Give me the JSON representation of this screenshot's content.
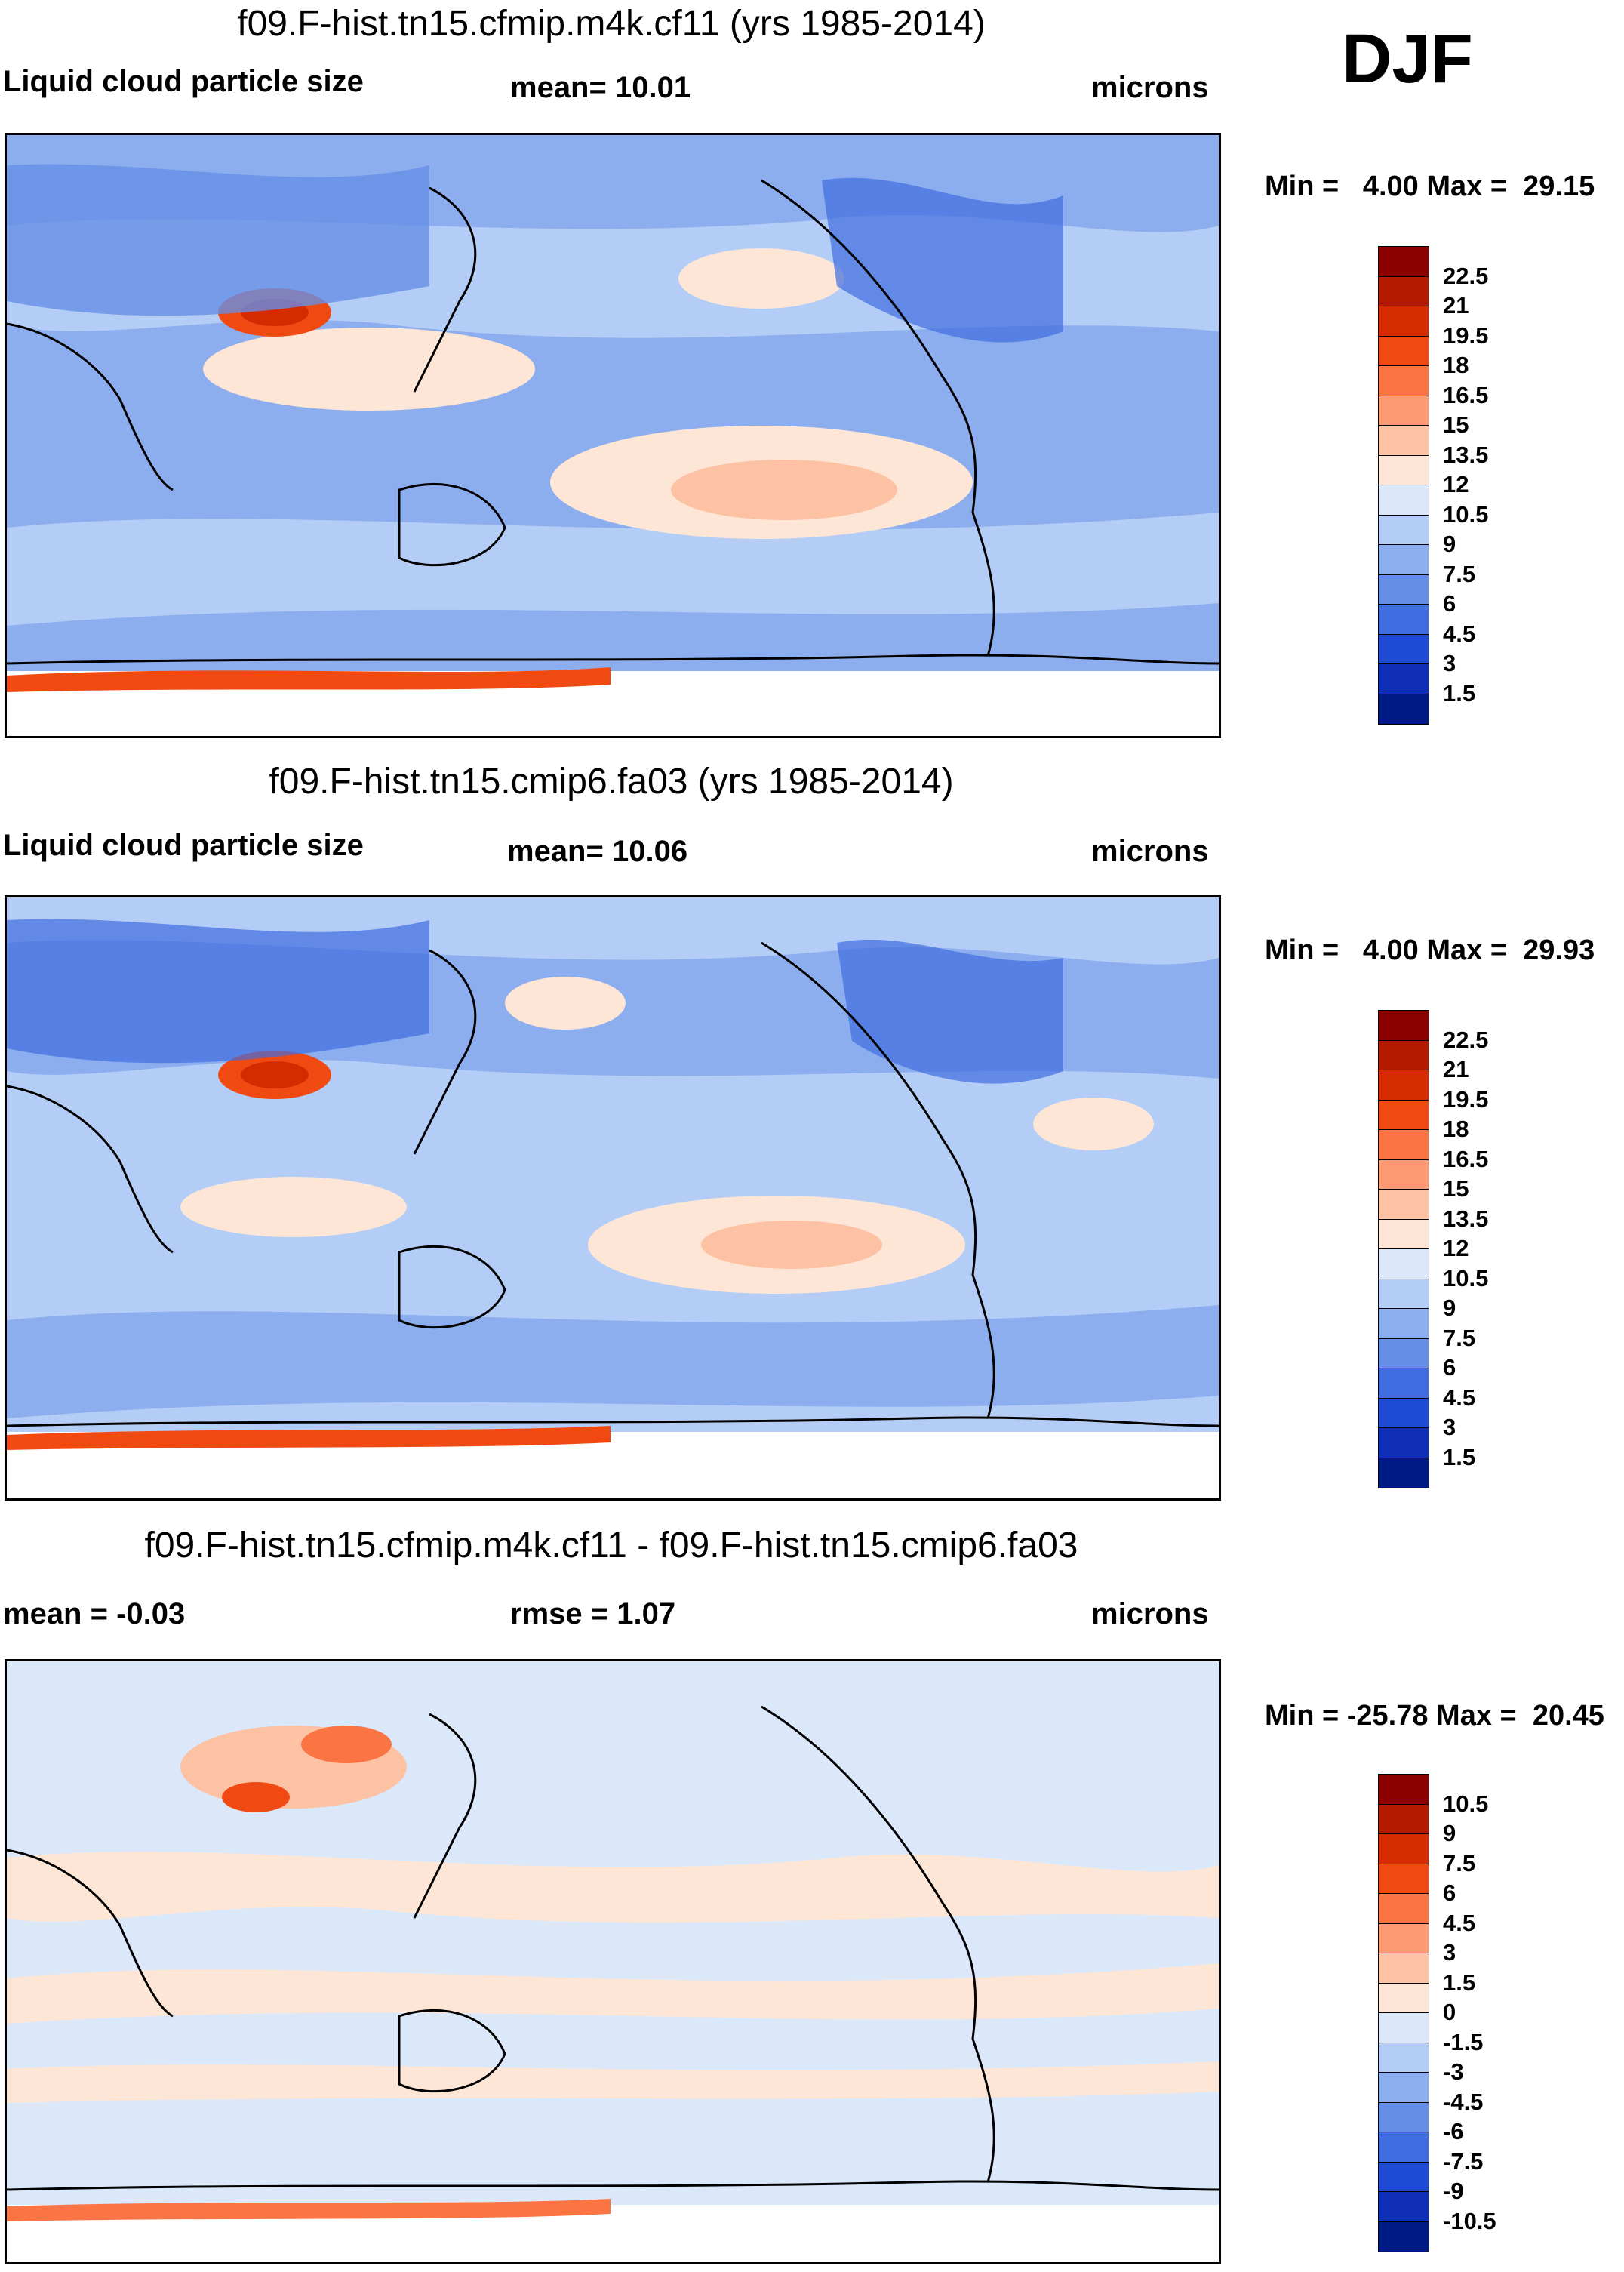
{
  "season": "DJF",
  "units": "microns",
  "panels": [
    {
      "title": "f09.F-hist.tn15.cfmip.m4k.cf11 (yrs 1985-2014)",
      "variable": "Liquid cloud particle size",
      "stat_label": "mean=  10.01",
      "units": "microns",
      "minmax": "Min =   4.00 Max =  29.15"
    },
    {
      "title": "f09.F-hist.tn15.cmip6.fa03 (yrs 1985-2014)",
      "variable": "Liquid cloud particle size",
      "stat_label": "mean=  10.06",
      "units": "microns",
      "minmax": "Min =   4.00 Max =  29.93"
    },
    {
      "title": "f09.F-hist.tn15.cfmip.m4k.cf11 - f09.F-hist.tn15.cmip6.fa03",
      "variable": "mean =  -0.03",
      "stat_label": "rmse =    1.07",
      "units": "microns",
      "minmax": "Min = -25.78 Max =  20.45"
    }
  ],
  "chart_data": [
    {
      "type": "heatmap",
      "title": "f09.F-hist.tn15.cfmip.m4k.cf11 (yrs 1985-2014)",
      "variable": "Liquid cloud particle size",
      "units": "microns",
      "mean": 10.01,
      "min": 4.0,
      "max": 29.15,
      "colorbar_levels": [
        "22.5",
        "21",
        "19.5",
        "18",
        "16.5",
        "15",
        "13.5",
        "12",
        "10.5",
        "9",
        "7.5",
        "6",
        "4.5",
        "3",
        "1.5"
      ],
      "colorbar_colors": [
        "#8c0000",
        "#b31a00",
        "#d62a00",
        "#f04a12",
        "#fa7444",
        "#fc9a74",
        "#fdc1a4",
        "#fde6d6",
        "#dbe8fa",
        "#b4cdf6",
        "#8caeee",
        "#658ee6",
        "#3f6cdf",
        "#1f4ad6",
        "#0f2fb8",
        "#001a86"
      ]
    },
    {
      "type": "heatmap",
      "title": "f09.F-hist.tn15.cmip6.fa03 (yrs 1985-2014)",
      "variable": "Liquid cloud particle size",
      "units": "microns",
      "mean": 10.06,
      "min": 4.0,
      "max": 29.93,
      "colorbar_levels": [
        "22.5",
        "21",
        "19.5",
        "18",
        "16.5",
        "15",
        "13.5",
        "12",
        "10.5",
        "9",
        "7.5",
        "6",
        "4.5",
        "3",
        "1.5"
      ],
      "colorbar_colors": [
        "#8c0000",
        "#b31a00",
        "#d62a00",
        "#f04a12",
        "#fa7444",
        "#fc9a74",
        "#fdc1a4",
        "#fde6d6",
        "#dbe8fa",
        "#b4cdf6",
        "#8caeee",
        "#658ee6",
        "#3f6cdf",
        "#1f4ad6",
        "#0f2fb8",
        "#001a86"
      ]
    },
    {
      "type": "heatmap",
      "title": "f09.F-hist.tn15.cfmip.m4k.cf11 - f09.F-hist.tn15.cmip6.fa03",
      "units": "microns",
      "mean": -0.03,
      "rmse": 1.07,
      "min": -25.78,
      "max": 20.45,
      "colorbar_levels": [
        "10.5",
        "9",
        "7.5",
        "6",
        "4.5",
        "3",
        "1.5",
        "0",
        "-1.5",
        "-3",
        "-4.5",
        "-6",
        "-7.5",
        "-9",
        "-10.5"
      ],
      "colorbar_colors": [
        "#8c0000",
        "#b31a00",
        "#d62a00",
        "#f04a12",
        "#fa7444",
        "#fc9a74",
        "#fdc1a4",
        "#fde6d6",
        "#dbe8fa",
        "#b4cdf6",
        "#8caeee",
        "#658ee6",
        "#3f6cdf",
        "#1f4ad6",
        "#0f2fb8",
        "#001a86"
      ]
    }
  ]
}
